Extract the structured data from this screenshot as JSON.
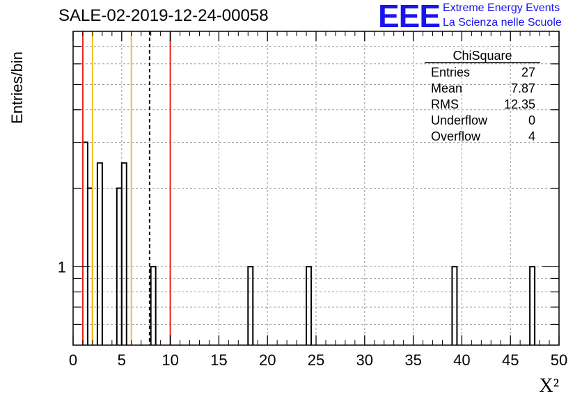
{
  "logo": {
    "mark": "EEE",
    "line1": "Extreme Energy Events",
    "line2": "La Scienza nelle Scuole",
    "color": "#1a14f0"
  },
  "chart_data": {
    "type": "histogram",
    "title": "SALE-02-2019-12-24-00058",
    "xlabel": "X²",
    "ylabel": "Entries/bin",
    "xlim": [
      0,
      50
    ],
    "y_scale": "log",
    "ylim": [
      0.5,
      8
    ],
    "x_tick_labels": [
      "0",
      "5",
      "10",
      "15",
      "20",
      "25",
      "30",
      "35",
      "40",
      "45",
      "50"
    ],
    "y_tick_labels": [
      "1"
    ],
    "grid": true,
    "bin_width": 0.5,
    "bins": [
      {
        "x0": 1.0,
        "x1": 1.5,
        "count": 3
      },
      {
        "x0": 1.5,
        "x1": 2.0,
        "count": 2
      },
      {
        "x0": 2.5,
        "x1": 3.0,
        "count": 2.5
      },
      {
        "x0": 4.5,
        "x1": 5.0,
        "count": 2
      },
      {
        "x0": 5.0,
        "x1": 5.5,
        "count": 2.5
      },
      {
        "x0": 8.0,
        "x1": 8.5,
        "count": 1
      },
      {
        "x0": 18.0,
        "x1": 18.5,
        "count": 1
      },
      {
        "x0": 24.0,
        "x1": 24.5,
        "count": 1
      },
      {
        "x0": 39.0,
        "x1": 39.5,
        "count": 1
      },
      {
        "x0": 47.0,
        "x1": 47.5,
        "count": 1
      }
    ],
    "reference_lines": [
      {
        "x": 1.0,
        "color": "#e8231e",
        "style": "solid"
      },
      {
        "x": 2.0,
        "color": "#f2c31b",
        "style": "solid"
      },
      {
        "x": 6.0,
        "color": "#f2c31b",
        "style": "solid"
      },
      {
        "x": 7.87,
        "color": "#000000",
        "style": "dashed"
      },
      {
        "x": 10.0,
        "color": "#e8231e",
        "style": "solid"
      }
    ],
    "stats_box": {
      "title": "ChiSquare",
      "rows": [
        {
          "label": "Entries",
          "value": "27"
        },
        {
          "label": "Mean",
          "value": "7.87"
        },
        {
          "label": "RMS",
          "value": "12.35"
        },
        {
          "label": "Underflow",
          "value": "0"
        },
        {
          "label": "Overflow",
          "value": "4"
        }
      ]
    }
  }
}
